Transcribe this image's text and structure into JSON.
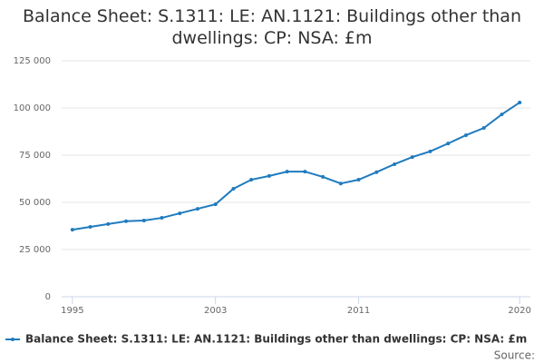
{
  "chart_data": {
    "type": "line",
    "title": "Balance Sheet: S.1311: LE: AN.1121: Buildings other than dwellings: CP: NSA: £m",
    "x": [
      1995,
      1996,
      1997,
      1998,
      1999,
      2000,
      2001,
      2002,
      2003,
      2004,
      2005,
      2006,
      2007,
      2008,
      2009,
      2010,
      2011,
      2012,
      2013,
      2014,
      2015,
      2016,
      2017,
      2018,
      2019,
      2020
    ],
    "series": [
      {
        "name": "Balance Sheet: S.1311: LE: AN.1121: Buildings other than dwellings: CP: NSA: £m",
        "color": "#1f7bbf",
        "values": [
          35500,
          37000,
          38500,
          40000,
          40400,
          41800,
          44200,
          46600,
          49000,
          57200,
          62000,
          64000,
          66300,
          66300,
          63500,
          60000,
          62000,
          66000,
          70200,
          74000,
          77000,
          81200,
          85600,
          89400,
          96600,
          102900
        ]
      }
    ],
    "xlim": [
      1994.4,
      2020.6
    ],
    "xticks": [
      1995,
      2003,
      2011,
      2020
    ],
    "ylim": [
      0,
      125000
    ],
    "yticks": [
      0,
      {
        "value": 25000,
        "label": "25 000"
      },
      {
        "value": 50000,
        "label": "50 000"
      },
      {
        "value": 75000,
        "label": "75 000"
      },
      {
        "value": 100000,
        "label": "100 000"
      },
      {
        "value": 125000,
        "label": "125 000"
      }
    ],
    "grid": true,
    "legend": "bottom",
    "source_label": "Source:"
  }
}
